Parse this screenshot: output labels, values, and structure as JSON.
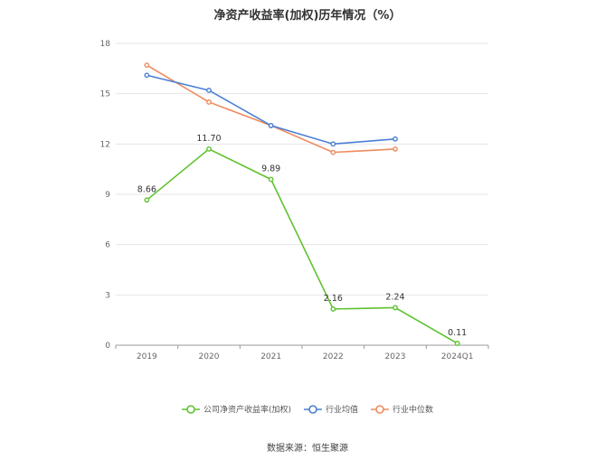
{
  "chart_data": {
    "type": "line",
    "title": "净资产收益率(加权)历年情况（%）",
    "categories": [
      "2019",
      "2020",
      "2021",
      "2022",
      "2023",
      "2024Q1"
    ],
    "ylim": [
      0,
      18
    ],
    "yticks": [
      0,
      3,
      6,
      9,
      12,
      15,
      18
    ],
    "grid": true,
    "legend_position": "bottom",
    "series": [
      {
        "name": "公司净资产收益率(加权)",
        "color": "#5ec22f",
        "values": [
          8.66,
          11.7,
          9.89,
          2.16,
          2.24,
          0.11
        ],
        "labels": [
          "8.66",
          "11.70",
          "9.89",
          "2.16",
          "2.24",
          "0.11"
        ]
      },
      {
        "name": "行业均值",
        "color": "#4a7fd6",
        "values": [
          16.1,
          15.2,
          13.1,
          12.0,
          12.3,
          null
        ]
      },
      {
        "name": "行业中位数",
        "color": "#f08a5d",
        "values": [
          16.7,
          14.5,
          13.1,
          11.5,
          11.7,
          null
        ]
      }
    ]
  },
  "source": "数据来源：恒生聚源"
}
